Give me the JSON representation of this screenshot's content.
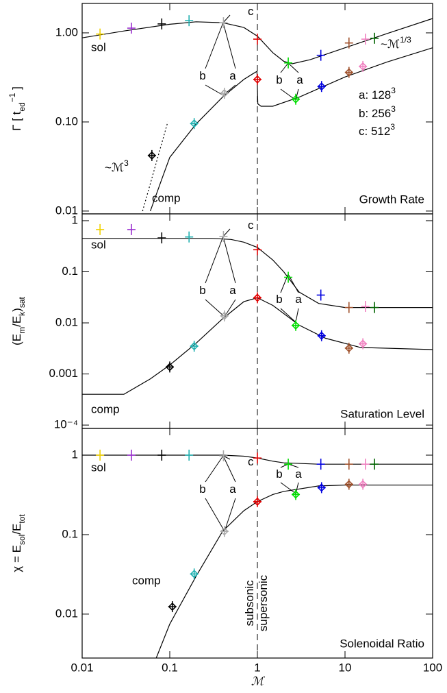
{
  "x_label": "ℳ",
  "chart_data": [
    {
      "type": "scatter",
      "title": "Growth Rate",
      "log_scale": true,
      "ylabel": [
        {
          "text": "Γ [ t"
        },
        {
          "text": "ed",
          "shift": "sub"
        },
        {
          "text": "−1",
          "shift": "super"
        },
        {
          "text": " ]"
        }
      ],
      "xlim": [
        0.01,
        100
      ],
      "xticks": [
        0.01,
        0.1,
        1,
        10,
        100
      ],
      "ylim": [
        0.0093,
        2.14
      ],
      "yticks": [
        {
          "value": 1,
          "label": "1.00"
        },
        {
          "value": 0.1,
          "label": "0.10"
        },
        0.01
      ],
      "vline": 1,
      "series": [
        {
          "name": "sol",
          "marker": "plus",
          "x": [
            0.016,
            0.0365,
            0.081,
            0.166,
            0.41,
            1.0,
            2.25,
            5.3,
            11.1,
            17.1,
            21.7
          ],
          "values": [
            0.97,
            1.13,
            1.26,
            1.37,
            1.3,
            0.85,
            0.46,
            0.56,
            0.77,
            0.85,
            0.87
          ],
          "colors": [
            "#f0d000",
            "#9b30d0",
            "#000000",
            "#20b0b0",
            "#aaaaaa",
            "#e00000",
            "#00dd00",
            "#0000e0",
            "#a0522d",
            "#f080c0",
            "#006400"
          ]
        },
        {
          "name": "comp",
          "marker": "diamond",
          "x": [
            0.0625,
            0.19,
            0.42,
            1.0,
            2.74,
            5.4,
            11.1,
            16
          ],
          "values": [
            0.042,
            0.096,
            0.21,
            0.3,
            0.18,
            0.25,
            0.36,
            0.42
          ],
          "colors": [
            "#000000",
            "#20b0b0",
            "#aaaaaa",
            "#e00000",
            "#00dd00",
            "#0000e0",
            "#a0522d",
            "#f080c0"
          ]
        }
      ],
      "curves": [
        {
          "style": "solid",
          "x": [
            0.01,
            0.03,
            0.1,
            0.2,
            0.4,
            0.7,
            1,
            1.5,
            2,
            2.5,
            4,
            10,
            30,
            100
          ],
          "values": [
            0.88,
            1.05,
            1.25,
            1.33,
            1.3,
            1.15,
            0.92,
            0.6,
            0.48,
            0.45,
            0.5,
            0.68,
            0.98,
            1.45
          ]
        },
        {
          "style": "solid",
          "x": [
            0.06,
            0.08,
            0.1,
            0.2,
            0.4,
            0.7,
            0.9,
            0.99,
            1.01,
            1.1,
            1.5,
            3,
            10,
            30,
            100
          ],
          "values": [
            0.01,
            0.022,
            0.04,
            0.095,
            0.19,
            0.3,
            0.35,
            0.37,
            0.16,
            0.15,
            0.15,
            0.19,
            0.32,
            0.47,
            0.68
          ]
        },
        {
          "style": "dotted",
          "x": [
            0.049,
            0.095
          ],
          "values": [
            0.01,
            0.1
          ]
        }
      ],
      "annotations": [
        [
          {
            "text": "c"
          }
        ],
        [
          {
            "text": "b"
          }
        ],
        [
          {
            "text": "a"
          }
        ],
        [
          {
            "text": "b"
          }
        ],
        [
          {
            "text": "a"
          }
        ],
        [
          {
            "text": "~ℳ"
          },
          {
            "text": "1/3",
            "shift": "super"
          }
        ],
        [
          {
            "text": "~ℳ"
          },
          {
            "text": "3",
            "shift": "super"
          }
        ],
        [
          {
            "text": "a: 128"
          },
          {
            "text": "3",
            "shift": "super"
          }
        ],
        [
          {
            "text": "b: 256"
          },
          {
            "text": "3",
            "shift": "super"
          }
        ],
        [
          {
            "text": "c: 512"
          },
          {
            "text": "3",
            "shift": "super"
          }
        ]
      ]
    },
    {
      "type": "scatter",
      "title": "Saturation Level",
      "log_scale": true,
      "ylabel": [
        {
          "text": "(E"
        },
        {
          "text": "m",
          "shift": "sub"
        },
        {
          "text": "/E"
        },
        {
          "text": "k",
          "shift": "sub"
        },
        {
          "text": ")"
        },
        {
          "text": "sat",
          "shift": "sub"
        }
      ],
      "xlim": [
        0.01,
        100
      ],
      "xticks": [
        0.01,
        0.1,
        1,
        10,
        100
      ],
      "ylim": [
        8.6e-05,
        1.36
      ],
      "yticks": [
        1,
        0.1,
        0.01,
        0.001,
        {
          "value": 0.0001,
          "label": "10⁻⁴"
        }
      ],
      "vline": 1,
      "series": [
        {
          "name": "sol",
          "marker": "plus",
          "x": [
            0.016,
            0.0365,
            0.081,
            0.166,
            0.41,
            1.0,
            2.25,
            5.3,
            11.1,
            17.1,
            21.7
          ],
          "values": [
            0.67,
            0.67,
            0.46,
            0.48,
            0.49,
            0.27,
            0.078,
            0.035,
            0.02,
            0.021,
            0.02
          ],
          "colors": [
            "#f0d000",
            "#9b30d0",
            "#000000",
            "#20b0b0",
            "#aaaaaa",
            "#e00000",
            "#00dd00",
            "#0000e0",
            "#a0522d",
            "#f080c0",
            "#006400"
          ]
        },
        {
          "name": "comp",
          "marker": "diamond",
          "x": [
            0.1,
            0.19,
            0.42,
            1.0,
            2.74,
            5.4,
            11.1,
            16
          ],
          "values": [
            0.00137,
            0.0035,
            0.0137,
            0.031,
            0.0089,
            0.0056,
            0.0032,
            0.0039
          ],
          "colors": [
            "#000000",
            "#20b0b0",
            "#aaaaaa",
            "#e00000",
            "#00dd00",
            "#0000e0",
            "#a0522d",
            "#f080c0"
          ]
        }
      ],
      "curves": [
        {
          "style": "solid",
          "x": [
            0.01,
            0.3,
            0.5,
            0.7,
            1,
            1.5,
            2,
            3,
            5,
            10,
            100
          ],
          "values": [
            0.45,
            0.45,
            0.43,
            0.38,
            0.3,
            0.17,
            0.1,
            0.04,
            0.024,
            0.02,
            0.02
          ]
        },
        {
          "style": "solid",
          "x": [
            0.01,
            0.03,
            0.06,
            0.1,
            0.2,
            0.4,
            0.7,
            1,
            1.5,
            3,
            6,
            15,
            100
          ],
          "values": [
            0.0004,
            0.0004,
            0.0008,
            0.0015,
            0.004,
            0.012,
            0.026,
            0.031,
            0.022,
            0.009,
            0.005,
            0.0033,
            0.003
          ]
        }
      ],
      "annotations": [
        [
          {
            "text": "c"
          }
        ],
        [
          {
            "text": "b"
          }
        ],
        [
          {
            "text": "a"
          }
        ],
        [
          {
            "text": "b"
          }
        ],
        [
          {
            "text": "a"
          }
        ]
      ]
    },
    {
      "type": "scatter",
      "title": "Solenoidal Ratio",
      "log_scale": true,
      "ylabel": [
        {
          "text": "χ = E"
        },
        {
          "text": "sol",
          "shift": "sub"
        },
        {
          "text": "/E"
        },
        {
          "text": "tot",
          "shift": "sub"
        }
      ],
      "xlim": [
        0.01,
        100
      ],
      "xticks": [
        0.01,
        0.1,
        1,
        10,
        100
      ],
      "ylim": [
        0.0028,
        2.17
      ],
      "yticks": [
        1,
        0.1,
        0.01
      ],
      "vline": 1,
      "series": [
        {
          "name": "sol",
          "marker": "plus",
          "x": [
            0.016,
            0.0365,
            0.081,
            0.166,
            0.41,
            1.0,
            2.25,
            5.3,
            11.1,
            17.1,
            21.7
          ],
          "values": [
            1.0,
            1.0,
            1.0,
            1.0,
            0.98,
            0.92,
            0.77,
            0.77,
            0.77,
            0.77,
            0.77
          ],
          "colors": [
            "#f0d000",
            "#9b30d0",
            "#000000",
            "#20b0b0",
            "#aaaaaa",
            "#e00000",
            "#00dd00",
            "#0000e0",
            "#a0522d",
            "#f080c0",
            "#006400"
          ]
        },
        {
          "name": "comp",
          "marker": "diamond",
          "x": [
            0.107,
            0.19,
            0.42,
            1,
            2.74,
            5.4,
            11.1,
            16
          ],
          "values": [
            0.0124,
            0.032,
            0.11,
            0.26,
            0.32,
            0.39,
            0.43,
            0.43
          ],
          "colors": [
            "#000000",
            "#20b0b0",
            "#aaaaaa",
            "#e00000",
            "#00dd00",
            "#0000e0",
            "#a0522d",
            "#f080c0"
          ]
        }
      ],
      "curves": [
        {
          "style": "solid",
          "x": [
            0.01,
            0.4,
            0.7,
            1,
            1.5,
            2,
            5,
            100
          ],
          "values": [
            1.0,
            1.0,
            0.97,
            0.92,
            0.84,
            0.8,
            0.77,
            0.77
          ]
        },
        {
          "style": "solid",
          "x": [
            0.07,
            0.1,
            0.2,
            0.4,
            0.7,
            1,
            1.5,
            2,
            5,
            10,
            100
          ],
          "values": [
            0.0028,
            0.0075,
            0.03,
            0.11,
            0.2,
            0.26,
            0.32,
            0.35,
            0.41,
            0.42,
            0.42
          ]
        }
      ],
      "annotations": [
        [
          {
            "text": "c"
          }
        ],
        [
          {
            "text": "b"
          }
        ],
        [
          {
            "text": "a"
          }
        ],
        [
          {
            "text": "b"
          }
        ],
        [
          {
            "text": "a"
          }
        ],
        [
          {
            "text": "subsonic"
          }
        ],
        [
          {
            "text": "supersonic"
          }
        ]
      ]
    }
  ]
}
